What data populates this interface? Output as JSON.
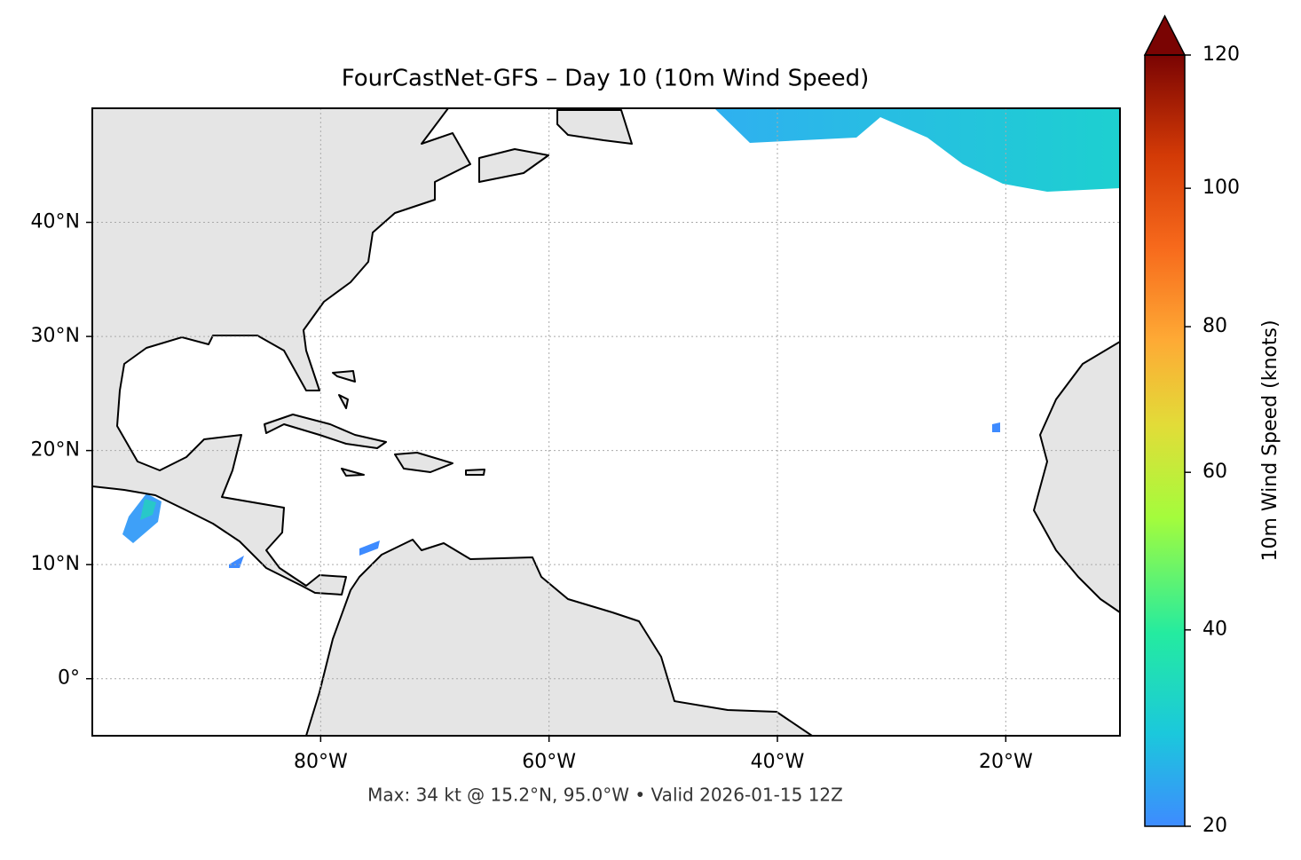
{
  "chart_data": {
    "type": "map",
    "title": "FourCastNet-GFS – Day 10 (10m Wind Speed)",
    "xlim": [
      -100,
      -10
    ],
    "ylim": [
      -5,
      50
    ],
    "xticks": [
      {
        "value": -80,
        "label": "80°W"
      },
      {
        "value": -60,
        "label": "60°W"
      },
      {
        "value": -40,
        "label": "40°W"
      },
      {
        "value": -20,
        "label": "20°W"
      }
    ],
    "yticks": [
      {
        "value": 0,
        "label": "0°"
      },
      {
        "value": 10,
        "label": "10°N"
      },
      {
        "value": 20,
        "label": "20°N"
      },
      {
        "value": 30,
        "label": "30°N"
      },
      {
        "value": 40,
        "label": "40°N"
      }
    ],
    "grid": true,
    "annotation": "Max: 34 kt @ 15.2°N, 95.0°W • Valid 2026-01-15 12Z",
    "colorbar": {
      "label": "10m Wind Speed (knots)",
      "lim": [
        20,
        120
      ],
      "ticks": [
        20,
        40,
        60,
        80,
        100,
        120
      ],
      "gamma": 0.85,
      "extend": "max"
    }
  }
}
